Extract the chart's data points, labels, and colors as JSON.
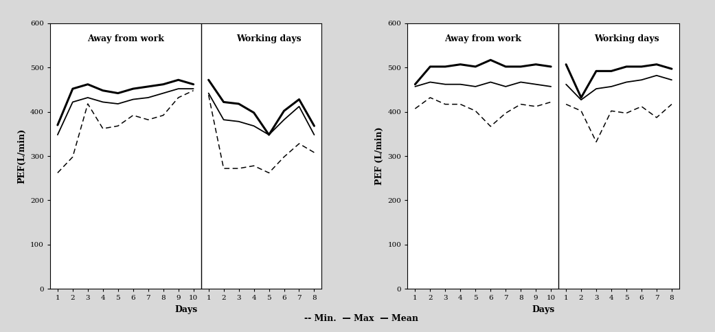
{
  "left_chart": {
    "days_away": [
      1,
      2,
      3,
      4,
      5,
      6,
      7,
      8,
      9,
      10
    ],
    "days_work": [
      1,
      2,
      3,
      4,
      5,
      6,
      7,
      8
    ],
    "away_max": [
      370,
      452,
      462,
      448,
      442,
      452,
      457,
      462,
      472,
      462
    ],
    "away_mean": [
      348,
      422,
      432,
      422,
      418,
      428,
      432,
      442,
      452,
      452
    ],
    "away_min": [
      262,
      298,
      418,
      362,
      368,
      392,
      382,
      392,
      432,
      448
    ],
    "work_max": [
      472,
      422,
      418,
      398,
      348,
      402,
      428,
      368
    ],
    "work_mean": [
      442,
      382,
      378,
      368,
      348,
      382,
      412,
      348
    ],
    "work_min": [
      438,
      272,
      272,
      278,
      262,
      298,
      328,
      308
    ],
    "ylabel": "PEF(L/min)",
    "xlabel": "Days",
    "title_away": "Away from work",
    "title_work": "Working days",
    "ylim": [
      0,
      600
    ],
    "yticks": [
      0,
      100,
      200,
      300,
      400,
      500,
      600
    ],
    "xticks_away": [
      1,
      2,
      3,
      4,
      5,
      6,
      7,
      8,
      9,
      10
    ],
    "xticks_work": [
      1,
      2,
      3,
      4,
      5,
      6,
      7,
      8
    ]
  },
  "right_chart": {
    "days_away": [
      1,
      2,
      3,
      4,
      5,
      6,
      7,
      8,
      9,
      10
    ],
    "days_work": [
      1,
      2,
      3,
      4,
      5,
      6,
      7,
      8
    ],
    "away_max": [
      462,
      502,
      502,
      507,
      502,
      517,
      502,
      502,
      507,
      502
    ],
    "away_mean": [
      457,
      467,
      462,
      462,
      457,
      467,
      457,
      467,
      462,
      457
    ],
    "away_min": [
      407,
      432,
      417,
      417,
      402,
      367,
      397,
      417,
      412,
      422
    ],
    "work_max": [
      507,
      432,
      492,
      492,
      502,
      502,
      507,
      497
    ],
    "work_mean": [
      462,
      427,
      452,
      457,
      467,
      472,
      482,
      472
    ],
    "work_min": [
      417,
      402,
      332,
      402,
      397,
      412,
      387,
      417
    ],
    "ylabel": "PEF (L/min)",
    "xlabel": "Days",
    "title_away": "Away from work",
    "title_work": "Working days",
    "ylim": [
      0,
      600
    ],
    "yticks": [
      0,
      100,
      200,
      300,
      400,
      500,
      600
    ],
    "xticks_away": [
      1,
      2,
      3,
      4,
      5,
      6,
      7,
      8,
      9,
      10
    ],
    "xticks_work": [
      1,
      2,
      3,
      4,
      5,
      6,
      7,
      8
    ]
  },
  "bg_color": "#d8d8d8",
  "plot_bg": "#ffffff",
  "legend_label": "-- Min.  — Max  — Mean"
}
